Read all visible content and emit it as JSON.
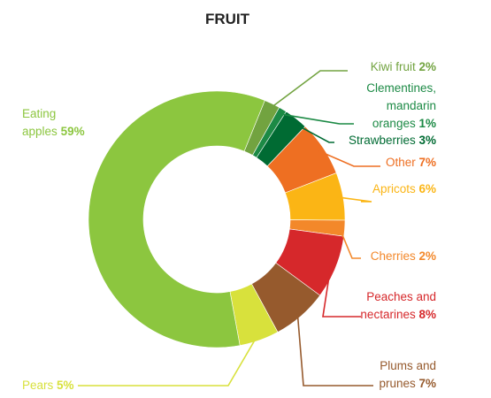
{
  "chart_data": {
    "type": "pie",
    "variant": "donut",
    "title": "FRUIT",
    "start_angle_deg": 22,
    "direction": "clockwise",
    "slices": [
      {
        "key": "kiwi",
        "label": [
          "Kiwi fruit"
        ],
        "value": 2,
        "value_text": "2%",
        "color": "#72a340"
      },
      {
        "key": "clementines",
        "label": [
          "Clementines,",
          "mandarin",
          "oranges"
        ],
        "value": 1,
        "value_text": "1%",
        "color": "#1c8a45"
      },
      {
        "key": "strawberries",
        "label": [
          "Strawberries"
        ],
        "value": 3,
        "value_text": "3%",
        "color": "#006b33"
      },
      {
        "key": "other",
        "label": [
          "Other"
        ],
        "value": 7,
        "value_text": "7%",
        "color": "#ee6f22"
      },
      {
        "key": "apricots",
        "label": [
          "Apricots"
        ],
        "value": 6,
        "value_text": "6%",
        "color": "#fbb515"
      },
      {
        "key": "cherries",
        "label": [
          "Cherries"
        ],
        "value": 2,
        "value_text": "2%",
        "color": "#f3882a"
      },
      {
        "key": "peaches",
        "label": [
          "Peaches and",
          "nectarines"
        ],
        "value": 8,
        "value_text": "8%",
        "color": "#d6282b"
      },
      {
        "key": "plums",
        "label": [
          "Plums and",
          "prunes"
        ],
        "value": 7,
        "value_text": "7%",
        "color": "#965a2d"
      },
      {
        "key": "pears",
        "label": [
          "Pears"
        ],
        "value": 5,
        "value_text": "5%",
        "color": "#d8e13c"
      },
      {
        "key": "apples",
        "label": [
          "Eating",
          "apples"
        ],
        "value": 59,
        "value_text": "59%",
        "color": "#8cc63f"
      }
    ]
  }
}
